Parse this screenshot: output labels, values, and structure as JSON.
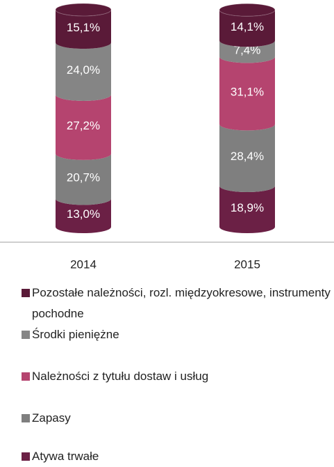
{
  "chart_data": {
    "type": "stacked_cylinder",
    "categories": [
      "2014",
      "2015"
    ],
    "ylim": [
      0,
      100
    ],
    "series": [
      {
        "name": "Atywa trwałe",
        "color": "#6b2045",
        "values": [
          13.0,
          18.9
        ],
        "value_labels": [
          "13,0%",
          "18,9%"
        ]
      },
      {
        "name": "Zapasy",
        "color": "#7f7f7f",
        "values": [
          20.7,
          28.4
        ],
        "value_labels": [
          "20,7%",
          "28,4%"
        ]
      },
      {
        "name": "Należności z tytułu dostaw i usług",
        "color": "#b5446f",
        "values": [
          27.2,
          31.1
        ],
        "value_labels": [
          "27,2%",
          "31,1%"
        ]
      },
      {
        "name": "Środki pieniężne",
        "color": "#858585",
        "values": [
          24.0,
          7.4
        ],
        "value_labels": [
          "24,0%",
          "7,4%"
        ]
      },
      {
        "name": "Pozostałe należności, rozl. międzyokresowe, instrumenty pochodne",
        "color": "#5a1a38",
        "values": [
          15.1,
          14.1
        ],
        "value_labels": [
          "15,1%",
          "14,1%"
        ]
      }
    ]
  }
}
